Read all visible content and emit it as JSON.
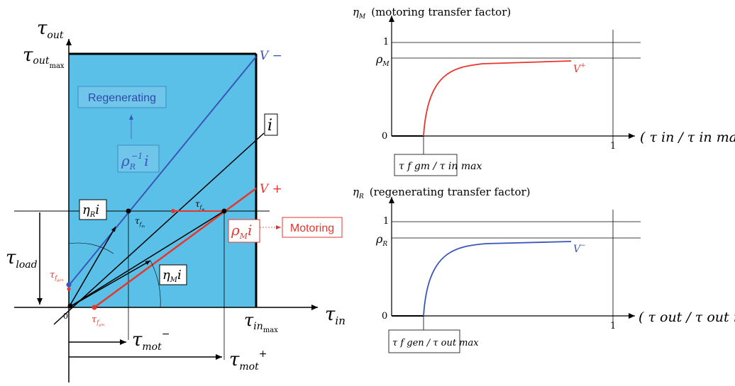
{
  "left_diagram": {
    "axis_y_label": "τ",
    "axis_y_sub": "out",
    "axis_x_label": "τ",
    "axis_x_sub": "in",
    "ymax_label": "τ",
    "ymax_sub": "out",
    "ymax_subsub": "max",
    "xmax_label": "τ",
    "xmax_sub": "in",
    "xmax_subsub": "max",
    "origin": "0",
    "line_vminus": "V −",
    "line_vplus": "V +",
    "line_i": "i",
    "regen_box": "Regenerating",
    "motoring_box": "Motoring",
    "rho_r_inv": {
      "sym": "ρ",
      "sub": "R",
      "sup": "−1",
      "tail": "i"
    },
    "rho_m": {
      "sym": "ρ",
      "sub": "M",
      "tail": "i"
    },
    "eta_r": {
      "sym": "η",
      "sub": "R",
      "tail": "i"
    },
    "eta_m": {
      "sym": "η",
      "sub": "M",
      "tail": "i"
    },
    "tau_load": {
      "sym": "τ",
      "sub": "load"
    },
    "tau_fw": {
      "sym": "τ",
      "sub": "f",
      "subsub": "w"
    },
    "tau_fm": {
      "sym": "τ",
      "sub": "f",
      "subsub": "m"
    },
    "tau_fgen": {
      "sym": "τ",
      "sub": "f",
      "subsub": "gen"
    },
    "tau_fgm": {
      "sym": "τ",
      "sub": "f",
      "subsub": "gm"
    },
    "tau_mot_minus": {
      "sym": "τ",
      "sub": "mot",
      "sup": "−"
    },
    "tau_mot_plus": {
      "sym": "τ",
      "sub": "mot",
      "sup": "+"
    }
  },
  "top_chart": {
    "title_sym": "η",
    "title_sub": "M",
    "title_text": "(motoring transfer factor)",
    "y_one": "1",
    "y_rho": "ρ",
    "y_rho_sub": "M",
    "y_zero": "0",
    "x_one": "1",
    "x_label": "( τ in / τ in max )",
    "curve_label": "V",
    "curve_sup": "+",
    "box_text": "τ f gm / τ in max",
    "curve_color": "#e8352c"
  },
  "bottom_chart": {
    "title_sym": "η",
    "title_sub": "R",
    "title_text": "(regenerating transfer factor)",
    "y_one": "1",
    "y_rho": "ρ",
    "y_rho_sub": "R",
    "y_zero": "0",
    "x_one": "1",
    "x_label": "( τ out / τ out max )",
    "curve_label": "V",
    "curve_sup": "−",
    "box_text": "τ f gen / τ out max",
    "curve_color": "#3a56b8"
  },
  "colors": {
    "region_fill": "#5bc0e8",
    "red": "#e8352c",
    "blue": "#3a56b8"
  }
}
